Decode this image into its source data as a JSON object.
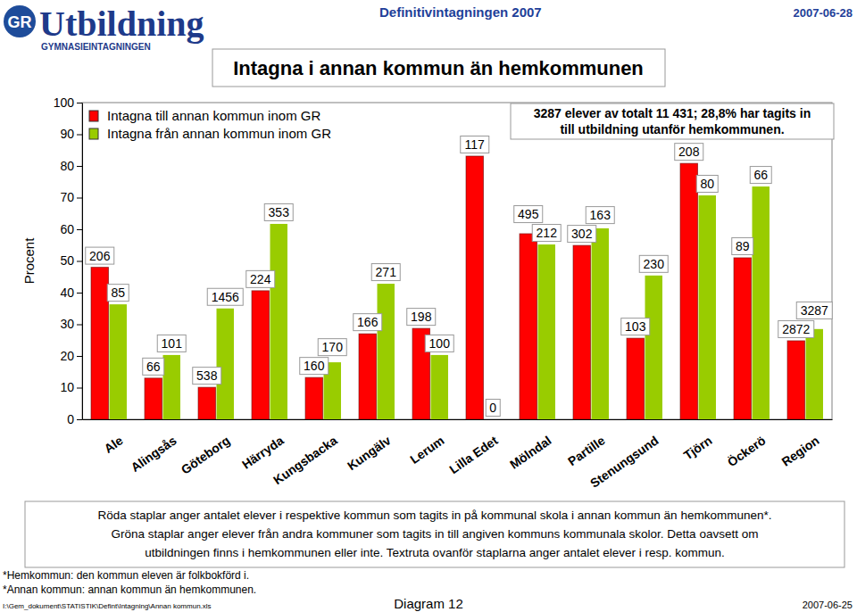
{
  "page": {
    "logo_mark": "GR",
    "logo_text": "Utbildning",
    "logo_sub": "GYMNASIEINTAGNINGEN",
    "doc_title": "Definitivintagningen 2007",
    "date": "2007-06-28",
    "caption": [
      "Röda staplar anger antalet elever i respektive kommun som tagits in på kommunal skola i annan kommun än hemkommunen*.",
      "Gröna staplar anger elever från andra kommuner som tagits in till angiven kommuns kommunala skolor. Detta oavsett om",
      "utbildningen finns i hemkommunen eller inte. Textruta ovanför staplarna anger antalet elever i resp. kommun."
    ],
    "notes": [
      "*Hemkommun: den kommun eleven är folkbokförd i.",
      "*Annan kommun: annan kommun än hemkommunen."
    ],
    "file_path": "I:\\Gem_dokument\\STATISTIK\\Defint\\Intagning\\Annan kommun.xls",
    "diagram": "Diagram 12",
    "footer_date": "2007-06-25"
  },
  "chart_data": {
    "type": "bar",
    "title": "Intagna i annan kommun än hemkommunen",
    "y_label": "Procent",
    "annotation": [
      "3287 elever av totalt 11 431; 28,8% har tagits in",
      "till utbildning utanför hemkommunen."
    ],
    "categories": [
      "Ale",
      "Alingsås",
      "Göteborg",
      "Härryda",
      "Kungsbacka",
      "Kungälv",
      "Lerum",
      "Lilla Edet",
      "Mölndal",
      "Partille",
      "Stenungsund",
      "Tjörn",
      "Öckerö",
      "Region"
    ],
    "series": [
      {
        "name": "Intagna till annan kommun inom GR",
        "color": "#ff0000",
        "values": [
          48,
          13,
          10.1,
          40.6,
          13.2,
          27,
          28.7,
          83.1,
          58.6,
          54.9,
          25.6,
          80.8,
          51,
          24.8
        ],
        "counts": [
          206,
          66,
          538,
          224,
          160,
          166,
          198,
          117,
          495,
          302,
          103,
          208,
          89,
          2872
        ]
      },
      {
        "name": "Intagna från annan kommun inom GR",
        "color": "#99cc00",
        "values": [
          36.3,
          20.3,
          35,
          61.7,
          18,
          42.8,
          20.3,
          0,
          55.2,
          60.3,
          45.4,
          70.7,
          73.5,
          28.5
        ],
        "counts": [
          85,
          101,
          1456,
          353,
          170,
          271,
          100,
          0,
          212,
          163,
          230,
          80,
          66,
          3287
        ]
      }
    ],
    "ylim": [
      0,
      100
    ],
    "yticks": [
      0,
      10,
      20,
      30,
      40,
      50,
      60,
      70,
      80,
      90,
      100
    ],
    "grid": false,
    "legend": "top-left"
  }
}
